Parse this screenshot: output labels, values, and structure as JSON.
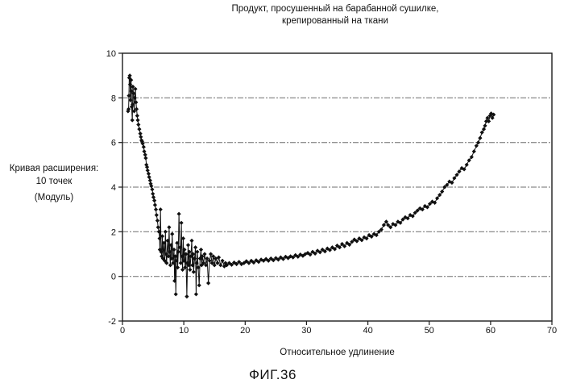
{
  "figure": {
    "title_line1": "Продукт, просушенный на барабанной сушилке,",
    "title_line2": "крепированный на ткани",
    "caption": "ФИГ.36"
  },
  "chart_data": {
    "type": "scatter",
    "title": "Продукт, просушенный на барабанной сушилке, крепированный на ткани",
    "ylabel_lines": [
      "Кривая расширения:",
      "10 точек",
      "(Модуль)"
    ],
    "xlabel": "Относительное удлинение",
    "caption": "ФИГ.36",
    "xlim": [
      0,
      70
    ],
    "ylim": [
      -2,
      10
    ],
    "xticks": [
      0,
      10,
      20,
      30,
      40,
      50,
      60,
      70
    ],
    "yticks": [
      10,
      8,
      6,
      4,
      2,
      0,
      -2
    ],
    "gridlines_y": [
      8,
      6,
      4,
      2,
      0
    ],
    "grid": "horizontal-dashed",
    "legend": "none",
    "marker": "diamond",
    "line_color": "#101010",
    "points": [
      [
        0.9,
        7.4
      ],
      [
        1.0,
        7.5
      ],
      [
        1.05,
        8.1
      ],
      [
        1.1,
        8.9
      ],
      [
        1.2,
        9.0
      ],
      [
        1.25,
        8.6
      ],
      [
        1.3,
        7.9
      ],
      [
        1.4,
        8.8
      ],
      [
        1.45,
        8.3
      ],
      [
        1.5,
        7.6
      ],
      [
        1.6,
        7.0
      ],
      [
        1.65,
        7.7
      ],
      [
        1.7,
        8.5
      ],
      [
        1.8,
        8.2
      ],
      [
        1.9,
        7.4
      ],
      [
        2.0,
        8.0
      ],
      [
        2.1,
        8.4
      ],
      [
        2.2,
        7.8
      ],
      [
        2.3,
        7.5
      ],
      [
        2.4,
        7.2
      ],
      [
        2.5,
        7.0
      ],
      [
        2.6,
        6.8
      ],
      [
        2.75,
        6.6
      ],
      [
        2.9,
        6.4
      ],
      [
        3.0,
        6.25
      ],
      [
        3.1,
        6.1
      ],
      [
        3.2,
        6.05
      ],
      [
        3.3,
        5.95
      ],
      [
        3.45,
        5.8
      ],
      [
        3.55,
        5.6
      ],
      [
        3.7,
        5.45
      ],
      [
        3.8,
        5.3
      ],
      [
        3.9,
        5.0
      ],
      [
        4.0,
        4.9
      ],
      [
        4.1,
        4.75
      ],
      [
        4.25,
        4.6
      ],
      [
        4.35,
        4.45
      ],
      [
        4.5,
        4.3
      ],
      [
        4.6,
        4.15
      ],
      [
        4.7,
        4.05
      ],
      [
        4.85,
        3.9
      ],
      [
        4.95,
        3.7
      ],
      [
        5.05,
        3.55
      ],
      [
        5.2,
        3.4
      ],
      [
        5.3,
        3.2
      ],
      [
        5.45,
        3.0
      ],
      [
        5.55,
        2.75
      ],
      [
        5.7,
        2.5
      ],
      [
        5.8,
        2.2
      ],
      [
        5.95,
        2.0
      ],
      [
        6.05,
        1.7
      ],
      [
        6.1,
        1.2
      ],
      [
        6.2,
        3.0
      ],
      [
        6.3,
        1.1
      ],
      [
        6.4,
        0.9
      ],
      [
        6.5,
        1.8
      ],
      [
        6.6,
        0.8
      ],
      [
        6.75,
        1.5
      ],
      [
        6.9,
        0.7
      ],
      [
        7.0,
        2.0
      ],
      [
        7.1,
        1.0
      ],
      [
        7.2,
        0.6
      ],
      [
        7.35,
        1.6
      ],
      [
        7.5,
        0.9
      ],
      [
        7.6,
        2.2
      ],
      [
        7.7,
        1.1
      ],
      [
        7.8,
        0.5
      ],
      [
        7.9,
        1.4
      ],
      [
        8.0,
        0.8
      ],
      [
        8.1,
        1.9
      ],
      [
        8.25,
        0.6
      ],
      [
        8.4,
        1.2
      ],
      [
        8.5,
        -0.2
      ],
      [
        8.6,
        0.9
      ],
      [
        8.7,
        -0.8
      ],
      [
        8.8,
        0.7
      ],
      [
        8.9,
        1.5
      ],
      [
        9.0,
        0.4
      ],
      [
        9.1,
        1.1
      ],
      [
        9.2,
        2.8
      ],
      [
        9.35,
        1.3
      ],
      [
        9.5,
        0.6
      ],
      [
        9.6,
        2.4
      ],
      [
        9.7,
        0.9
      ],
      [
        9.8,
        0.3
      ],
      [
        9.9,
        1.7
      ],
      [
        10.0,
        0.7
      ],
      [
        10.1,
        1.2
      ],
      [
        10.2,
        0.4
      ],
      [
        10.35,
        1.0
      ],
      [
        10.5,
        -0.9
      ],
      [
        10.6,
        0.6
      ],
      [
        10.7,
        1.4
      ],
      [
        10.8,
        0.5
      ],
      [
        10.9,
        1.1
      ],
      [
        11.0,
        0.3
      ],
      [
        11.15,
        0.9
      ],
      [
        11.3,
        1.6
      ],
      [
        11.4,
        0.5
      ],
      [
        11.5,
        1.0
      ],
      [
        11.6,
        0.2
      ],
      [
        11.75,
        0.8
      ],
      [
        11.9,
        1.3
      ],
      [
        12.0,
        -0.8
      ],
      [
        12.1,
        0.6
      ],
      [
        12.2,
        1.1
      ],
      [
        12.35,
        0.4
      ],
      [
        12.5,
        -0.4
      ],
      [
        12.65,
        0.8
      ],
      [
        12.8,
        1.2
      ],
      [
        12.9,
        0.5
      ],
      [
        13.0,
        0.9
      ],
      [
        13.2,
        0.6
      ],
      [
        13.4,
        1.0
      ],
      [
        13.6,
        0.5
      ],
      [
        13.8,
        0.8
      ],
      [
        14.0,
        -0.3
      ],
      [
        14.2,
        0.7
      ],
      [
        14.4,
        1.0
      ],
      [
        14.6,
        0.6
      ],
      [
        14.8,
        0.9
      ],
      [
        15.0,
        0.5
      ],
      [
        15.2,
        0.8
      ],
      [
        15.5,
        0.6
      ],
      [
        15.7,
        0.85
      ],
      [
        16.0,
        0.5
      ],
      [
        16.3,
        0.7
      ],
      [
        16.6,
        0.45
      ],
      [
        16.8,
        0.6
      ],
      [
        17.0,
        0.5
      ],
      [
        17.4,
        0.6
      ],
      [
        17.8,
        0.52
      ],
      [
        18.2,
        0.62
      ],
      [
        18.6,
        0.55
      ],
      [
        19.0,
        0.65
      ],
      [
        19.4,
        0.55
      ],
      [
        19.8,
        0.6
      ],
      [
        20.2,
        0.68
      ],
      [
        20.6,
        0.6
      ],
      [
        21.0,
        0.7
      ],
      [
        21.4,
        0.62
      ],
      [
        21.8,
        0.72
      ],
      [
        22.2,
        0.65
      ],
      [
        22.6,
        0.75
      ],
      [
        23.0,
        0.7
      ],
      [
        23.4,
        0.78
      ],
      [
        23.8,
        0.7
      ],
      [
        24.2,
        0.8
      ],
      [
        24.6,
        0.72
      ],
      [
        25.0,
        0.82
      ],
      [
        25.4,
        0.75
      ],
      [
        25.8,
        0.85
      ],
      [
        26.2,
        0.78
      ],
      [
        26.6,
        0.88
      ],
      [
        27.0,
        0.82
      ],
      [
        27.4,
        0.9
      ],
      [
        27.8,
        0.85
      ],
      [
        28.2,
        0.95
      ],
      [
        28.6,
        0.88
      ],
      [
        29.0,
        0.98
      ],
      [
        29.4,
        0.92
      ],
      [
        29.8,
        1.0
      ],
      [
        30.2,
        1.05
      ],
      [
        30.6,
        0.98
      ],
      [
        31.0,
        1.1
      ],
      [
        31.4,
        1.02
      ],
      [
        31.8,
        1.15
      ],
      [
        32.2,
        1.08
      ],
      [
        32.6,
        1.2
      ],
      [
        33.0,
        1.12
      ],
      [
        33.4,
        1.25
      ],
      [
        33.8,
        1.18
      ],
      [
        34.2,
        1.3
      ],
      [
        34.6,
        1.22
      ],
      [
        35.0,
        1.38
      ],
      [
        35.4,
        1.3
      ],
      [
        35.8,
        1.45
      ],
      [
        36.2,
        1.35
      ],
      [
        36.6,
        1.5
      ],
      [
        37.0,
        1.42
      ],
      [
        37.4,
        1.55
      ],
      [
        37.8,
        1.65
      ],
      [
        38.2,
        1.58
      ],
      [
        38.6,
        1.7
      ],
      [
        39.0,
        1.62
      ],
      [
        39.4,
        1.75
      ],
      [
        39.8,
        1.7
      ],
      [
        40.2,
        1.85
      ],
      [
        40.6,
        1.78
      ],
      [
        41.0,
        1.9
      ],
      [
        41.4,
        1.85
      ],
      [
        41.8,
        2.0
      ],
      [
        42.2,
        2.1
      ],
      [
        42.6,
        2.3
      ],
      [
        43.0,
        2.45
      ],
      [
        43.3,
        2.3
      ],
      [
        43.7,
        2.2
      ],
      [
        44.1,
        2.35
      ],
      [
        44.5,
        2.3
      ],
      [
        44.9,
        2.45
      ],
      [
        45.3,
        2.4
      ],
      [
        45.7,
        2.55
      ],
      [
        46.1,
        2.65
      ],
      [
        46.5,
        2.6
      ],
      [
        46.9,
        2.75
      ],
      [
        47.3,
        2.7
      ],
      [
        47.7,
        2.85
      ],
      [
        48.1,
        2.95
      ],
      [
        48.5,
        3.05
      ],
      [
        48.9,
        3.0
      ],
      [
        49.3,
        3.15
      ],
      [
        49.7,
        3.1
      ],
      [
        50.1,
        3.25
      ],
      [
        50.5,
        3.35
      ],
      [
        50.9,
        3.3
      ],
      [
        51.3,
        3.5
      ],
      [
        51.7,
        3.65
      ],
      [
        52.1,
        3.8
      ],
      [
        52.5,
        4.0
      ],
      [
        52.9,
        4.1
      ],
      [
        53.3,
        4.25
      ],
      [
        53.7,
        4.2
      ],
      [
        54.1,
        4.4
      ],
      [
        54.5,
        4.55
      ],
      [
        54.9,
        4.7
      ],
      [
        55.3,
        4.85
      ],
      [
        55.7,
        4.8
      ],
      [
        56.1,
        5.0
      ],
      [
        56.5,
        5.2
      ],
      [
        56.9,
        5.35
      ],
      [
        57.3,
        5.6
      ],
      [
        57.7,
        5.85
      ],
      [
        58.0,
        6.0
      ],
      [
        58.3,
        6.2
      ],
      [
        58.6,
        6.45
      ],
      [
        58.9,
        6.6
      ],
      [
        59.1,
        6.75
      ],
      [
        59.3,
        6.95
      ],
      [
        59.5,
        7.1
      ],
      [
        59.7,
        6.95
      ],
      [
        59.9,
        7.2
      ],
      [
        60.1,
        7.3
      ],
      [
        60.3,
        7.1
      ],
      [
        60.5,
        7.25
      ]
    ]
  }
}
